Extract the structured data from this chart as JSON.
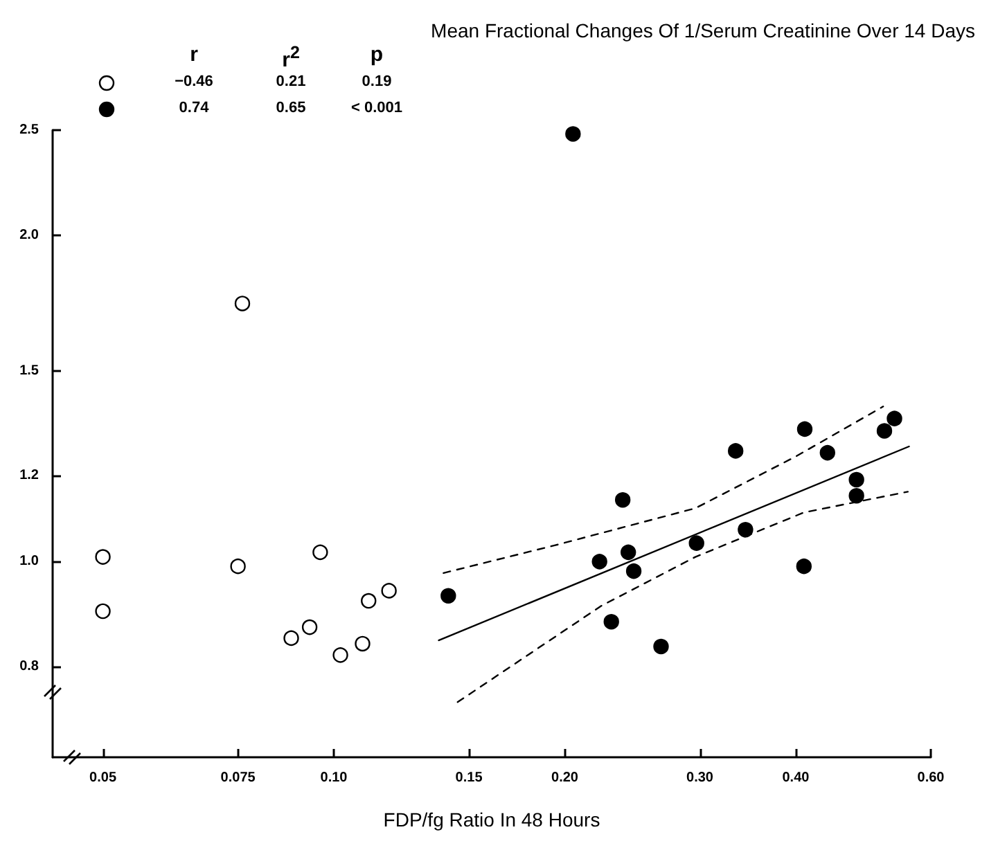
{
  "chart_data": {
    "type": "scatter",
    "title": "Mean Fractional Changes Of 1/Serum Creatinine Over 14 Days",
    "xlabel": "FDP/fg Ratio In 48 Hours",
    "log": "xy",
    "marker": "circle",
    "xlim": [
      0.043,
      0.6
    ],
    "xticks": [
      0.05,
      0.075,
      {
        "value": 0.1,
        "label": "0.10"
      },
      0.15,
      {
        "value": 0.2,
        "label": "0.20"
      },
      {
        "value": 0.3,
        "label": "0.30"
      },
      {
        "value": 0.4,
        "label": "0.40"
      },
      {
        "value": 0.6,
        "label": "0.60"
      }
    ],
    "ylim": [
      0.66,
      2.5
    ],
    "yticks": [
      0.8,
      {
        "value": 1.0,
        "label": "1.0"
      },
      1.2,
      1.5,
      {
        "value": 2.0,
        "label": "2.0"
      },
      2.5
    ],
    "annotations": [
      "r",
      "r$^{2}$",
      "p",
      "−0.46",
      "0.21",
      "0.19",
      "0.74",
      "0.65",
      "< 0.001"
    ],
    "series": [
      {
        "color": "#ffffff",
        "x": [
          0.05,
          0.05,
          0.076,
          0.075,
          0.096,
          0.088,
          0.093,
          0.102,
          0.109,
          0.111,
          0.118
        ],
        "values": [
          1.01,
          0.9,
          1.73,
          0.99,
          1.02,
          0.85,
          0.87,
          0.82,
          0.84,
          0.92,
          0.94
        ]
      },
      {
        "color": "#000000",
        "x": [
          0.141,
          0.222,
          0.238,
          0.242,
          0.246,
          0.23,
          0.267,
          0.297,
          0.334,
          0.344,
          0.411,
          0.41,
          0.44,
          0.48,
          0.48,
          0.522,
          0.538,
          0.205
        ],
        "values": [
          0.93,
          1.0,
          1.14,
          1.02,
          0.98,
          0.88,
          0.835,
          1.04,
          1.265,
          1.07,
          1.325,
          0.99,
          1.26,
          1.19,
          1.15,
          1.32,
          1.355,
          2.48
        ]
      },
      {
        "type": "line",
        "color": "#000000",
        "marker": "none",
        "line_style": "solid",
        "x": [
          0.137,
          0.562
        ],
        "values": [
          0.846,
          1.277
        ]
      },
      {
        "type": "line",
        "color": "#000000",
        "marker": "none",
        "line_style": "dashed",
        "x": [
          0.139,
          0.194,
          0.296,
          0.4,
          0.52
        ],
        "values": [
          0.976,
          1.035,
          1.12,
          1.25,
          1.39
        ]
      },
      {
        "type": "line",
        "color": "#000000",
        "marker": "none",
        "line_style": "dashed",
        "x": [
          0.145,
          0.223,
          0.296,
          0.41,
          0.56
        ],
        "values": [
          0.742,
          0.91,
          1.01,
          1.11,
          1.16
        ]
      }
    ]
  }
}
